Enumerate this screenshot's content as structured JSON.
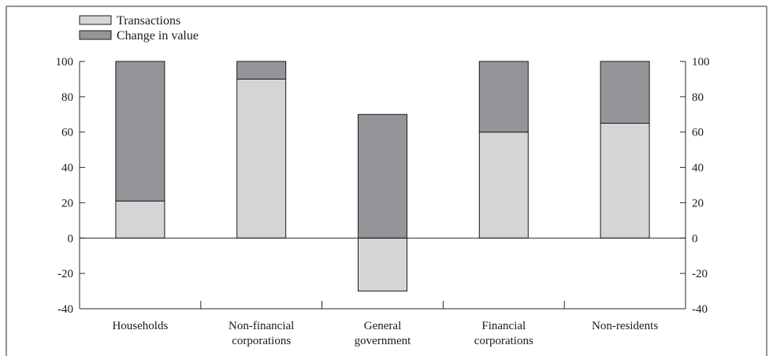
{
  "chart_data": {
    "type": "bar",
    "stacked": true,
    "categories": [
      [
        "Households"
      ],
      [
        "Non-financial",
        "corporations"
      ],
      [
        "General",
        "government"
      ],
      [
        "Financial",
        "corporations"
      ],
      [
        "Non-residents"
      ]
    ],
    "series": [
      {
        "name": "Transactions",
        "color": "#d4d5d7",
        "values": [
          21,
          90,
          -30,
          60,
          65
        ]
      },
      {
        "name": "Change in value",
        "color": "#939598",
        "values": [
          79,
          10,
          70,
          40,
          35
        ]
      }
    ],
    "ylim": [
      -40,
      100
    ],
    "yticks": [
      100,
      80,
      60,
      40,
      20,
      0,
      -20,
      -40
    ],
    "ytick_labels": [
      "100",
      "80",
      "60",
      "40",
      "20",
      "0",
      "-20",
      "-40"
    ],
    "y_axis_both_sides": true,
    "grid": false,
    "legend_position": "top-left"
  }
}
